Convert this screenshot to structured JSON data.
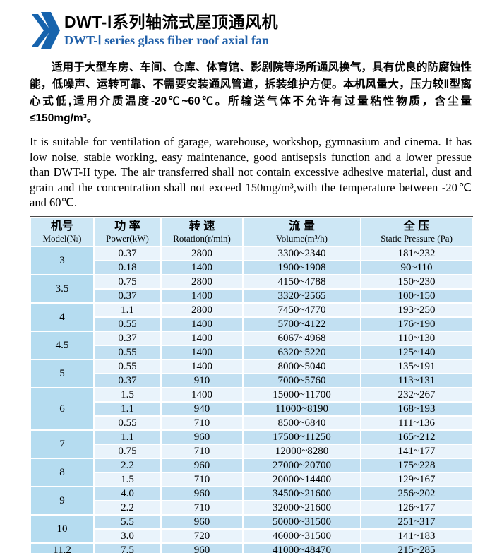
{
  "header": {
    "title_zh": "DWT-Ⅰ系列轴流式屋顶通风机",
    "title_en": "DWT-Ⅰ series glass fiber roof axial fan"
  },
  "intro_zh": "适用于大型车房、车间、仓库、体育馆、影剧院等场所通风换气，具有优良的防腐蚀性能，低噪声、运转可靠、不需要安装通风管道，拆装维护方便。本机风量大，压力较Ⅱ型离心式低,适用介质温度-20℃~60℃。所输送气体不允许有过量粘性物质，含尘量≤150mg/m³。",
  "intro_en": "It is suitable for ventilation of garage, warehouse, workshop, gymnasium and cinema. It has low noise, stable working, easy maintenance, good antisepsis function and a lower pressue than DWT-II type. The air transferred shall not contain excessive adhesive material, dust and grain and the concentration shall not exceed 150mg/m³,with the temperature between -20℃ and 60℃.",
  "table": {
    "headers": [
      {
        "zh": "机号",
        "en": "Model(№)"
      },
      {
        "zh": "功 率",
        "en": "Power(kW)"
      },
      {
        "zh": "转 速",
        "en": "Rotation(r/min)"
      },
      {
        "zh": "流 量",
        "en": "Volume(m³/h)"
      },
      {
        "zh": "全 压",
        "en": "Static Pressure (Pa)"
      }
    ],
    "groups": [
      {
        "model": "3",
        "rows": [
          {
            "power": "0.37",
            "rotation": "2800",
            "volume": "3300~2340",
            "pressure": "181~232"
          },
          {
            "power": "0.18",
            "rotation": "1400",
            "volume": "1900~1908",
            "pressure": "90~110"
          }
        ]
      },
      {
        "model": "3.5",
        "rows": [
          {
            "power": "0.75",
            "rotation": "2800",
            "volume": "4150~4788",
            "pressure": "150~230"
          },
          {
            "power": "0.37",
            "rotation": "1400",
            "volume": "3320~2565",
            "pressure": "100~150"
          }
        ]
      },
      {
        "model": "4",
        "rows": [
          {
            "power": "1.1",
            "rotation": "2800",
            "volume": "7450~4770",
            "pressure": "193~250"
          },
          {
            "power": "0.55",
            "rotation": "1400",
            "volume": "5700~4122",
            "pressure": "176~190"
          }
        ]
      },
      {
        "model": "4.5",
        "rows": [
          {
            "power": "0.37",
            "rotation": "1400",
            "volume": "6067~4968",
            "pressure": "110~130"
          },
          {
            "power": "0.55",
            "rotation": "1400",
            "volume": "6320~5220",
            "pressure": "125~140"
          }
        ]
      },
      {
        "model": "5",
        "rows": [
          {
            "power": "0.55",
            "rotation": "1400",
            "volume": "8000~5040",
            "pressure": "135~191"
          },
          {
            "power": "0.37",
            "rotation": "910",
            "volume": "7000~5760",
            "pressure": "113~131"
          }
        ]
      },
      {
        "model": "6",
        "rows": [
          {
            "power": "1.5",
            "rotation": "1400",
            "volume": "15000~11700",
            "pressure": "232~267"
          },
          {
            "power": "1.1",
            "rotation": "940",
            "volume": "11000~8190",
            "pressure": "168~193"
          },
          {
            "power": "0.55",
            "rotation": "710",
            "volume": "8500~6840",
            "pressure": "111~136"
          }
        ]
      },
      {
        "model": "7",
        "rows": [
          {
            "power": "1.1",
            "rotation": "960",
            "volume": "17500~11250",
            "pressure": "165~212"
          },
          {
            "power": "0.75",
            "rotation": "710",
            "volume": "12000~8280",
            "pressure": "141~177"
          }
        ]
      },
      {
        "model": "8",
        "rows": [
          {
            "power": "2.2",
            "rotation": "960",
            "volume": "27000~20700",
            "pressure": "175~228"
          },
          {
            "power": "1.5",
            "rotation": "710",
            "volume": "20000~14400",
            "pressure": "129~167"
          }
        ]
      },
      {
        "model": "9",
        "rows": [
          {
            "power": "4.0",
            "rotation": "960",
            "volume": "34500~21600",
            "pressure": "256~202"
          },
          {
            "power": "2.2",
            "rotation": "710",
            "volume": "32000~21600",
            "pressure": "126~177"
          }
        ]
      },
      {
        "model": "10",
        "rows": [
          {
            "power": "5.5",
            "rotation": "960",
            "volume": "50000~31500",
            "pressure": "251~317"
          },
          {
            "power": "3.0",
            "rotation": "720",
            "volume": "46000~31500",
            "pressure": "141~183"
          }
        ]
      },
      {
        "model": "11.2",
        "rows": [
          {
            "power": "7.5",
            "rotation": "960",
            "volume": "41000~48470",
            "pressure": "215~285"
          }
        ]
      }
    ]
  },
  "colors": {
    "accent_blue": "#1663ad",
    "subtitle_blue": "#1f5fa9",
    "table_header_bg": "#cde7f5",
    "model_col_bg": "#b5dcf0",
    "row_light_bg": "#e9f3fb",
    "row_medium_bg": "#c2e0f2"
  }
}
